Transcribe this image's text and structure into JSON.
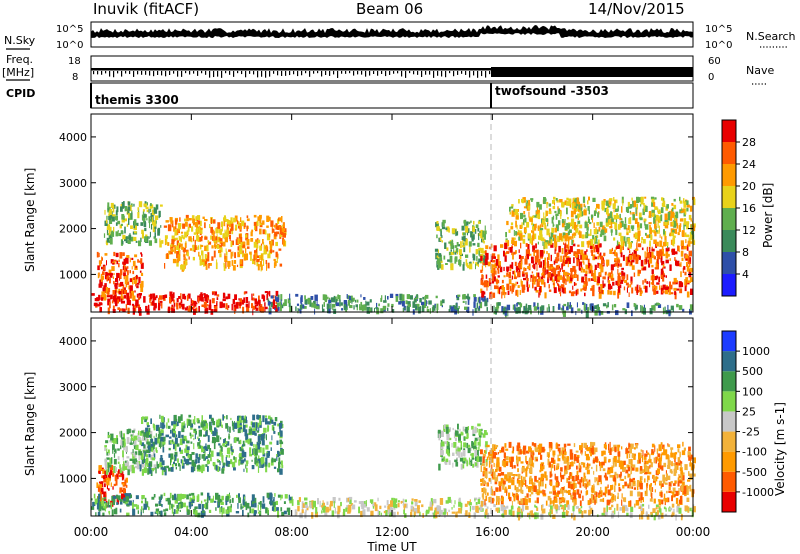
{
  "header": {
    "station": "Inuvik (fitACF)",
    "beam": "Beam 06",
    "date": "14/Nov/2015"
  },
  "left_labels": {
    "nsky": "N.Sky",
    "freq": "Freq.",
    "freq_unit": "[MHz]",
    "cpid": "CPID",
    "nsky_ticks": [
      "10^5",
      "10^0"
    ],
    "freq_ticks": [
      "18",
      "8"
    ]
  },
  "right_labels": {
    "nsearch": "N.Search",
    "nave": "Nave",
    "nsearch_ticks": [
      "10^5",
      "10^0"
    ],
    "nave_ticks": [
      "60",
      "0"
    ]
  },
  "cpid_segments": [
    {
      "label": "themis 3300",
      "start_hour": 0
    },
    {
      "label": "twofsound -3503",
      "start_hour": 16
    }
  ],
  "colors": {
    "power_scale": [
      "#1c1cff",
      "#2e4fa8",
      "#3a8a5a",
      "#5fae4e",
      "#e8d21a",
      "#ff9a00",
      "#ff5a00",
      "#e80000"
    ],
    "velocity_scale": [
      "#e80000",
      "#ff5a00",
      "#ff9a00",
      "#f2b23a",
      "#c8c8c8",
      "#7fd84a",
      "#3f9a4c",
      "#2e6e8a",
      "#1c3cff"
    ]
  },
  "chart_data": [
    {
      "type": "heatmap",
      "name": "power",
      "ylabel": "Slant Range [km]",
      "colorbar_label": "Power [dB]",
      "colorbar_ticks": [
        "4",
        "8",
        "12",
        "16",
        "20",
        "24",
        "28"
      ],
      "x_range_hours": [
        0,
        24
      ],
      "ylim": [
        180,
        4500
      ],
      "y_ticks": [
        "1000",
        "2000",
        "3000",
        "4000"
      ],
      "blobs": [
        {
          "t0": 0.2,
          "t1": 2.0,
          "r0": 500,
          "r1": 1500,
          "level": 6
        },
        {
          "t0": 0.5,
          "t1": 2.8,
          "r0": 1700,
          "r1": 2600,
          "level": 3
        },
        {
          "t0": 2.9,
          "t1": 7.7,
          "r0": 1200,
          "r1": 2300,
          "level": 5
        },
        {
          "t0": 0.0,
          "t1": 7.5,
          "r0": 240,
          "r1": 640,
          "level": 7
        },
        {
          "t0": 7.0,
          "t1": 15.8,
          "r0": 240,
          "r1": 580,
          "level": 2
        },
        {
          "t0": 13.7,
          "t1": 15.7,
          "r0": 1200,
          "r1": 2200,
          "level": 3
        },
        {
          "t0": 15.5,
          "t1": 24.0,
          "r0": 600,
          "r1": 1700,
          "level": 6
        },
        {
          "t0": 16.5,
          "t1": 24.0,
          "r0": 1700,
          "r1": 2700,
          "level": 4
        },
        {
          "t0": 16.0,
          "t1": 24.0,
          "r0": 200,
          "r1": 400,
          "level": 2
        }
      ]
    },
    {
      "type": "heatmap",
      "name": "velocity",
      "ylabel": "Slant Range [km]",
      "colorbar_label": "Velocity [m s-1]",
      "colorbar_ticks": [
        "-1000",
        "-500",
        "-100",
        "-25",
        "25",
        "100",
        "500",
        "1000"
      ],
      "x_range_hours": [
        0,
        24
      ],
      "ylim": [
        180,
        4500
      ],
      "y_ticks": [
        "1000",
        "2000",
        "3000",
        "4000"
      ],
      "blobs": [
        {
          "t0": 0.2,
          "t1": 1.4,
          "r0": 500,
          "r1": 1300,
          "level": 1
        },
        {
          "t0": 0.5,
          "t1": 2.5,
          "r0": 1200,
          "r1": 2100,
          "level": 5
        },
        {
          "t0": 1.9,
          "t1": 7.6,
          "r0": 1200,
          "r1": 2400,
          "level": 6
        },
        {
          "t0": 0.0,
          "t1": 8.0,
          "r0": 250,
          "r1": 700,
          "level": 6
        },
        {
          "t0": 8.0,
          "t1": 15.8,
          "r0": 240,
          "r1": 600,
          "level": 4
        },
        {
          "t0": 13.8,
          "t1": 15.8,
          "r0": 1300,
          "r1": 2200,
          "level": 5
        },
        {
          "t0": 15.5,
          "t1": 24.0,
          "r0": 500,
          "r1": 1800,
          "level": 2
        },
        {
          "t0": 16.0,
          "t1": 24.0,
          "r0": 200,
          "r1": 450,
          "level": 4
        }
      ]
    }
  ],
  "x_axis": {
    "ticks": [
      "00:00",
      "04:00",
      "08:00",
      "12:00",
      "16:00",
      "20:00",
      "00:00"
    ],
    "label": "Time UT"
  }
}
